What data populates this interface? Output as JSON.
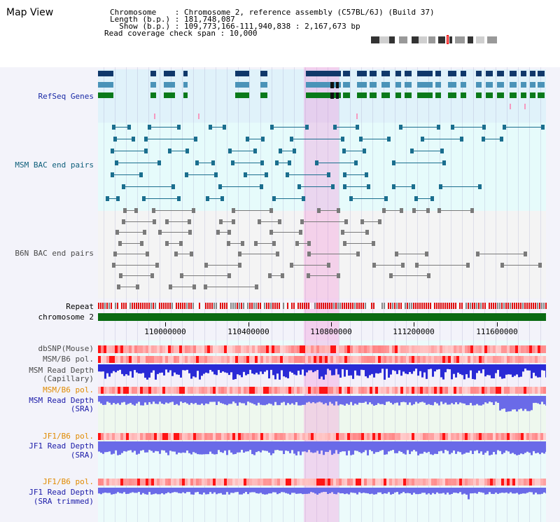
{
  "map": {
    "title": "Map View",
    "info": [
      "Chromosome    : Chromosome 2, reference assembly (C57BL/6J) (Build 37)",
      "Length (b.p.) : 181,748,087",
      "  Show (b.p.) : 109,773,166-111,940,838 : 2,167,673 bp",
      "Read coverage check span : 10,000"
    ]
  },
  "colors": {
    "refseq_bg": "#e0f2fa",
    "bac_bg": "#e6fbfb",
    "lower_bg": "#ecfcfc",
    "depth_bg": "#eefaee",
    "highlight": "#f8c8ee",
    "refseq_navy": "#10386a",
    "refseq_steel": "#4a93b8",
    "refseq_green": "#0a7a1a",
    "msm_bac": "#1a6e8e",
    "b6n_bac": "#7a7a7a",
    "repeat_red": "#e01010",
    "repeat_gray": "#888888",
    "chromosome": "#0a6b12",
    "depth_blue_capillary": "#2a2ad6",
    "depth_blue_sra": "#6a6ae8"
  },
  "tracks": {
    "refseq_genes": "RefSeq Genes",
    "msm_bac": "MSM BAC end pairs",
    "b6n_bac": "B6N BAC end pairs",
    "repeat": "Repeat",
    "chromosome": "chromosome 2",
    "dbsnp": "dbSNP(Mouse)",
    "msm_b6_pol_1": "MSM/B6 pol.",
    "msm_read_depth_cap_1": "MSM Read Depth",
    "msm_read_depth_cap_2": "(Capillary)",
    "msm_b6_pol_2": "MSM/B6 pol.",
    "msm_read_depth_sra_1": "MSM Read Depth",
    "msm_read_depth_sra_2": "(SRA)",
    "jf1_b6_pol_1": "JF1/B6 pol.",
    "jf1_read_depth_sra_1": "JF1 Read Depth",
    "jf1_read_depth_sra_2": "(SRA)",
    "jf1_b6_pol_2": "JF1/B6 pol.",
    "jf1_read_depth_trim_1": "JF1 Read Depth",
    "jf1_read_depth_trim_2": "(SRA trimmed)"
  },
  "axis": {
    "ticks": [
      "110000000",
      "110400000",
      "110800000",
      "111200000",
      "111600000"
    ]
  }
}
